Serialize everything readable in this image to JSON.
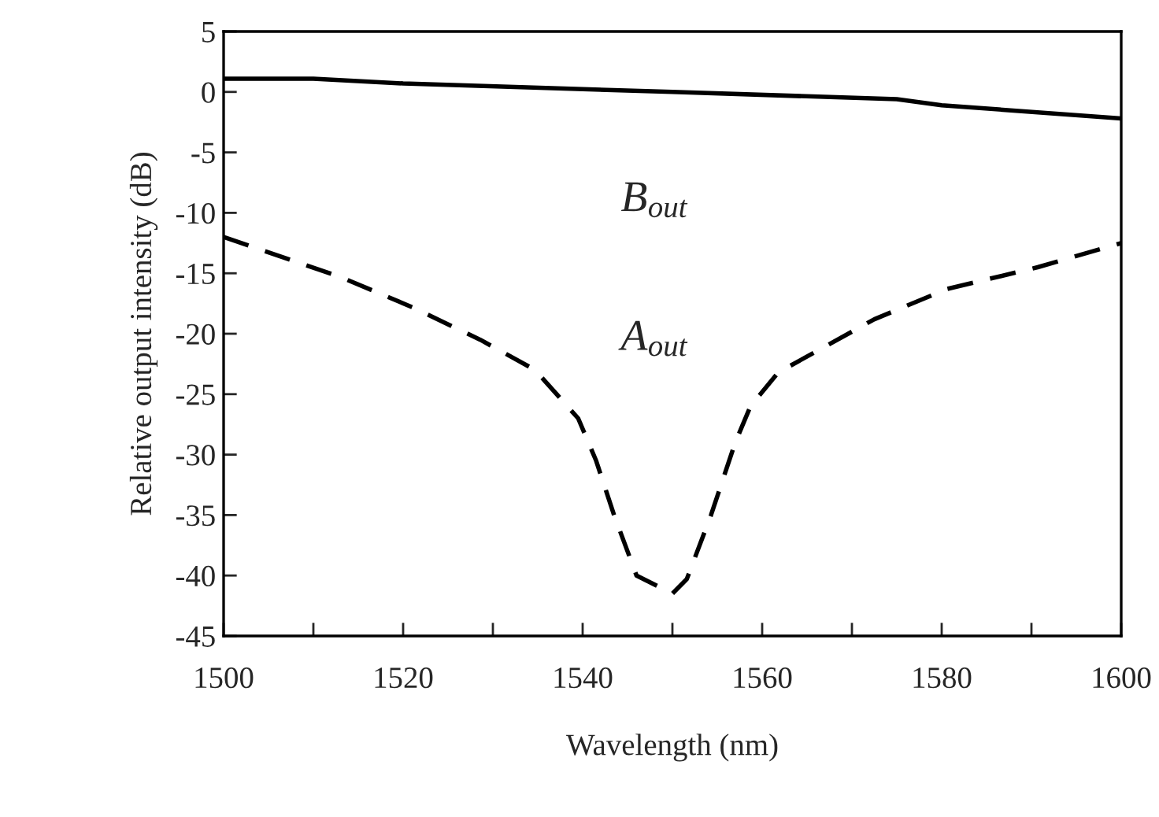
{
  "chart_data": {
    "type": "line",
    "xlabel": "Wavelength (nm)",
    "ylabel": "Relative output intensity (dB)",
    "xlim": [
      1500,
      1600
    ],
    "ylim": [
      -45,
      5
    ],
    "xticks": [
      1500,
      {
        "value": 1510,
        "label": null
      },
      1520,
      {
        "value": 1530,
        "label": null
      },
      1540,
      {
        "value": 1550,
        "label": null
      },
      1560,
      {
        "value": 1570,
        "label": null
      },
      1580,
      {
        "value": 1590,
        "label": null
      },
      1600
    ],
    "yticks": [
      -45,
      -40,
      -35,
      -30,
      -25,
      -20,
      -15,
      -10,
      -5,
      0,
      5
    ],
    "grid": false,
    "legend": false,
    "marker": "none",
    "series": [
      {
        "color": "#000000",
        "line_style": "solid",
        "x": [
          1500,
          1510,
          1520,
          1550,
          1575,
          1580,
          1600
        ],
        "values": [
          1.1,
          1.1,
          0.7,
          0,
          -0.6,
          -1.1,
          -2.2
        ]
      },
      {
        "color": "#000000",
        "line_style": "dashed",
        "x": [
          1500,
          1513,
          1521,
          1528.6,
          1534.7,
          1539.5,
          1541.5,
          1543.5,
          1546,
          1550,
          1551.6,
          1554.3,
          1557,
          1558.7,
          1561.8,
          1572.5,
          1580.6,
          1590.7,
          1600
        ],
        "values": [
          -12,
          -15.3,
          -17.8,
          -20.5,
          -23,
          -27,
          -30.5,
          -35,
          -40,
          -41.5,
          -40.3,
          -35,
          -29,
          -26,
          -23.2,
          -18.8,
          -16.3,
          -14.5,
          -12.5
        ]
      }
    ],
    "annotations": [
      "B$_{out}$",
      "A$_{out}$"
    ]
  }
}
